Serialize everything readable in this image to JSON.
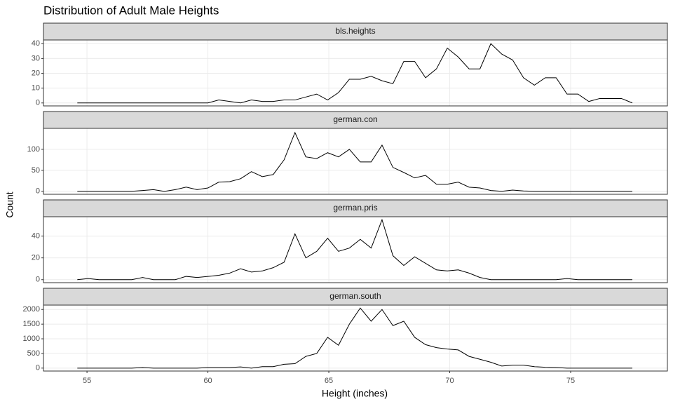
{
  "figure": {
    "title": "Distribution of Adult Male Heights",
    "x_label": "Height (inches)",
    "y_label": "Count"
  },
  "chart_data": [
    {
      "type": "line",
      "title": "bls.heights",
      "color": "#000000",
      "x": [
        54.6,
        55.05,
        55.5,
        55.95,
        56.4,
        56.85,
        57.3,
        57.75,
        58.2,
        58.65,
        59.1,
        59.55,
        60,
        60.45,
        60.9,
        61.35,
        61.8,
        62.25,
        62.7,
        63.15,
        63.6,
        64.05,
        64.5,
        64.95,
        65.4,
        65.85,
        66.3,
        66.75,
        67.2,
        67.65,
        68.1,
        68.55,
        69,
        69.45,
        69.9,
        70.35,
        70.8,
        71.25,
        71.7,
        72.15,
        72.6,
        73.05,
        73.5,
        73.95,
        74.4,
        74.85,
        75.3,
        75.75,
        76.2,
        76.65,
        77.1,
        77.55
      ],
      "values": [
        0,
        0,
        0,
        0,
        0,
        0,
        0,
        0,
        0,
        0,
        0,
        0,
        0,
        2,
        1,
        0,
        2,
        1,
        1,
        2,
        2,
        4,
        6,
        2,
        7,
        16,
        16,
        18,
        15,
        13,
        28,
        28,
        17,
        23,
        37,
        31,
        23,
        23,
        40,
        33,
        29,
        17,
        12,
        17,
        17,
        6,
        6,
        1,
        3,
        3,
        3,
        0
      ],
      "xlim": [
        53.2,
        79
      ],
      "xticks": [
        55,
        60,
        65,
        70,
        75
      ],
      "ylim": [
        -2,
        42.5
      ],
      "yticks": [
        0,
        10,
        20,
        30,
        40
      ]
    },
    {
      "type": "line",
      "title": "german.con",
      "color": "#000000",
      "x": [
        54.6,
        55.05,
        55.5,
        55.95,
        56.4,
        56.85,
        57.3,
        57.75,
        58.2,
        58.65,
        59.1,
        59.55,
        60,
        60.45,
        60.9,
        61.35,
        61.8,
        62.25,
        62.7,
        63.15,
        63.6,
        64.05,
        64.5,
        64.95,
        65.4,
        65.85,
        66.3,
        66.75,
        67.2,
        67.65,
        68.1,
        68.55,
        69,
        69.45,
        69.9,
        70.35,
        70.8,
        71.25,
        71.7,
        72.15,
        72.6,
        73.05,
        73.5,
        73.95,
        74.4,
        74.85,
        75.3,
        75.75,
        76.2,
        76.65,
        77.1,
        77.55
      ],
      "values": [
        0,
        0,
        0,
        0,
        0,
        0,
        2,
        4,
        0,
        4,
        10,
        4,
        8,
        22,
        23,
        30,
        47,
        35,
        40,
        75,
        140,
        82,
        78,
        92,
        82,
        100,
        70,
        70,
        110,
        57,
        45,
        32,
        38,
        17,
        17,
        22,
        10,
        8,
        2,
        0,
        3,
        1,
        0,
        0,
        0,
        0,
        0,
        0,
        0,
        0,
        0,
        0
      ],
      "xlim": [
        53.2,
        79
      ],
      "xticks": [
        55,
        60,
        65,
        70,
        75
      ],
      "ylim": [
        -7,
        150
      ],
      "yticks": [
        0,
        50,
        100
      ]
    },
    {
      "type": "line",
      "title": "german.pris",
      "color": "#000000",
      "x": [
        54.6,
        55.05,
        55.5,
        55.95,
        56.4,
        56.85,
        57.3,
        57.75,
        58.2,
        58.65,
        59.1,
        59.55,
        60,
        60.45,
        60.9,
        61.35,
        61.8,
        62.25,
        62.7,
        63.15,
        63.6,
        64.05,
        64.5,
        64.95,
        65.4,
        65.85,
        66.3,
        66.75,
        67.2,
        67.65,
        68.1,
        68.55,
        69,
        69.45,
        69.9,
        70.35,
        70.8,
        71.25,
        71.7,
        72.15,
        72.6,
        73.05,
        73.5,
        73.95,
        74.4,
        74.85,
        75.3,
        75.75,
        76.2,
        76.65,
        77.1,
        77.55
      ],
      "values": [
        0,
        1,
        0,
        0,
        0,
        0,
        2,
        0,
        0,
        0,
        3,
        2,
        3,
        4,
        6,
        10,
        7,
        8,
        11,
        16,
        42,
        20,
        26,
        38,
        26,
        29,
        37,
        29,
        55,
        22,
        13,
        21,
        15,
        9,
        8,
        9,
        6,
        2,
        0,
        0,
        0,
        0,
        0,
        0,
        0,
        1,
        0,
        0,
        0,
        0,
        0,
        0
      ],
      "xlim": [
        53.2,
        79
      ],
      "xticks": [
        55,
        60,
        65,
        70,
        75
      ],
      "ylim": [
        -2.75,
        57.75
      ],
      "yticks": [
        0,
        20,
        40
      ]
    },
    {
      "type": "line",
      "title": "german.south",
      "color": "#000000",
      "x": [
        54.6,
        55.05,
        55.5,
        55.95,
        56.4,
        56.85,
        57.3,
        57.75,
        58.2,
        58.65,
        59.1,
        59.55,
        60,
        60.45,
        60.9,
        61.35,
        61.8,
        62.25,
        62.7,
        63.15,
        63.6,
        64.05,
        64.5,
        64.95,
        65.4,
        65.85,
        66.3,
        66.75,
        67.2,
        67.65,
        68.1,
        68.55,
        69,
        69.45,
        69.9,
        70.35,
        70.8,
        71.25,
        71.7,
        72.15,
        72.6,
        73.05,
        73.5,
        73.95,
        74.4,
        74.85,
        75.3,
        75.75,
        76.2,
        76.65,
        77.1,
        77.55
      ],
      "values": [
        0,
        0,
        0,
        0,
        0,
        0,
        20,
        0,
        0,
        0,
        0,
        0,
        20,
        20,
        20,
        40,
        0,
        50,
        50,
        130,
        150,
        400,
        500,
        1050,
        780,
        1500,
        2050,
        1600,
        2000,
        1450,
        1600,
        1050,
        800,
        700,
        650,
        620,
        400,
        300,
        200,
        70,
        100,
        100,
        50,
        30,
        20,
        0,
        0,
        0,
        0,
        0,
        0,
        0
      ],
      "xlim": [
        53.2,
        79
      ],
      "xticks": [
        55,
        60,
        65,
        70,
        75
      ],
      "ylim": [
        -100,
        2150
      ],
      "yticks": [
        0,
        500,
        1000,
        1500,
        2000
      ]
    }
  ]
}
